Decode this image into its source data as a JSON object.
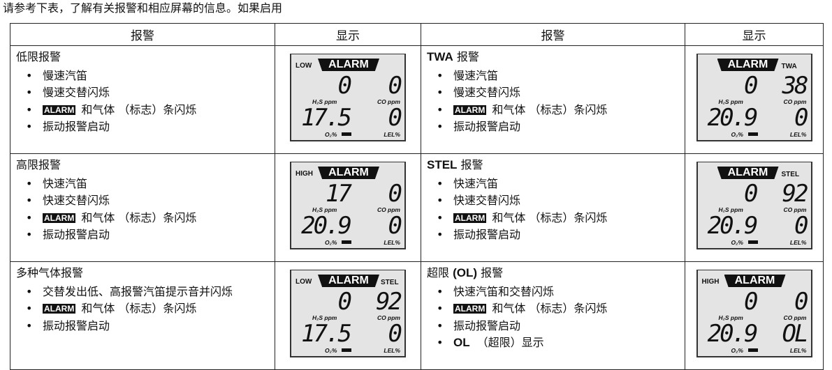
{
  "intro": "请参考下表，了解有关报警和相应屏幕的信息。如果启用",
  "headers": [
    "报警",
    "显示",
    "报警",
    "显示"
  ],
  "lcd_labels": {
    "h2s": "H₂S ppm",
    "co": "CO ppm",
    "o2": "O₂%",
    "lel": "LEL%",
    "alarm": "ALARM"
  },
  "rows": [
    {
      "left": {
        "title": {
          "pre": "低限报警",
          "bold": "",
          "post": ""
        },
        "items": [
          {
            "text": "慢速汽笛"
          },
          {
            "text": "慢速交替闪烁"
          },
          {
            "badge": "ALARM",
            "text": "和气体 （标志）条闪烁"
          },
          {
            "text": "振动报警启动"
          }
        ],
        "lcd": {
          "prefix": "LOW",
          "suffix": "",
          "h2s": "0",
          "co": "0",
          "o2": "17.5",
          "lel": "0"
        }
      },
      "right": {
        "title": {
          "pre": "",
          "bold": "TWA",
          "post": " 报警"
        },
        "items": [
          {
            "text": "慢速汽笛"
          },
          {
            "text": "慢速交替闪烁"
          },
          {
            "badge": "ALARM",
            "text": "和气体 （标志）条闪烁"
          },
          {
            "text": "振动报警启动"
          }
        ],
        "lcd": {
          "prefix": "",
          "suffix": "TWA",
          "h2s": "0",
          "co": "38",
          "o2": "20.9",
          "lel": "0"
        }
      }
    },
    {
      "left": {
        "title": {
          "pre": "高限报警",
          "bold": "",
          "post": ""
        },
        "items": [
          {
            "text": "快速汽笛"
          },
          {
            "text": "快速交替闪烁"
          },
          {
            "badge": "ALARM",
            "text": "和气体 （标志）条闪烁"
          },
          {
            "text": "振动报警启动"
          }
        ],
        "lcd": {
          "prefix": "HIGH",
          "suffix": "",
          "h2s": "17",
          "co": "0",
          "o2": "20.9",
          "lel": "0"
        }
      },
      "right": {
        "title": {
          "pre": "",
          "bold": "STEL",
          "post": " 报警"
        },
        "items": [
          {
            "text": "快速汽笛"
          },
          {
            "text": "快速交替闪烁"
          },
          {
            "badge": "ALARM",
            "text": "和气体 （标志）条闪烁"
          },
          {
            "text": "振动报警启动"
          }
        ],
        "lcd": {
          "prefix": "",
          "suffix": "STEL",
          "h2s": "0",
          "co": "92",
          "o2": "20.9",
          "lel": "0"
        }
      }
    },
    {
      "left": {
        "title": {
          "pre": "多种气体报警",
          "bold": "",
          "post": ""
        },
        "items": [
          {
            "text": "交替发出低、高报警汽笛提示音并闪烁"
          },
          {
            "badge": "ALARM",
            "text": "和气体 （标志）条闪烁"
          },
          {
            "text": "振动报警启动"
          }
        ],
        "lcd": {
          "prefix": "LOW",
          "suffix": "STEL",
          "h2s": "0",
          "co": "92",
          "o2": "17.5",
          "lel": "0"
        }
      },
      "right": {
        "title": {
          "pre": "超限 ",
          "bold": "(OL)",
          "post": " 报警"
        },
        "items": [
          {
            "text": "快速汽笛和交替闪烁"
          },
          {
            "badge": "ALARM",
            "text": "和气体 （标志）条闪烁"
          },
          {
            "text": "振动报警启动"
          },
          {
            "bold": "OL",
            "text": "（超限）显示"
          }
        ],
        "lcd": {
          "prefix": "HIGH",
          "suffix": "",
          "h2s": "0",
          "co": "0",
          "o2": "20.9",
          "lel": "OL"
        }
      }
    }
  ]
}
